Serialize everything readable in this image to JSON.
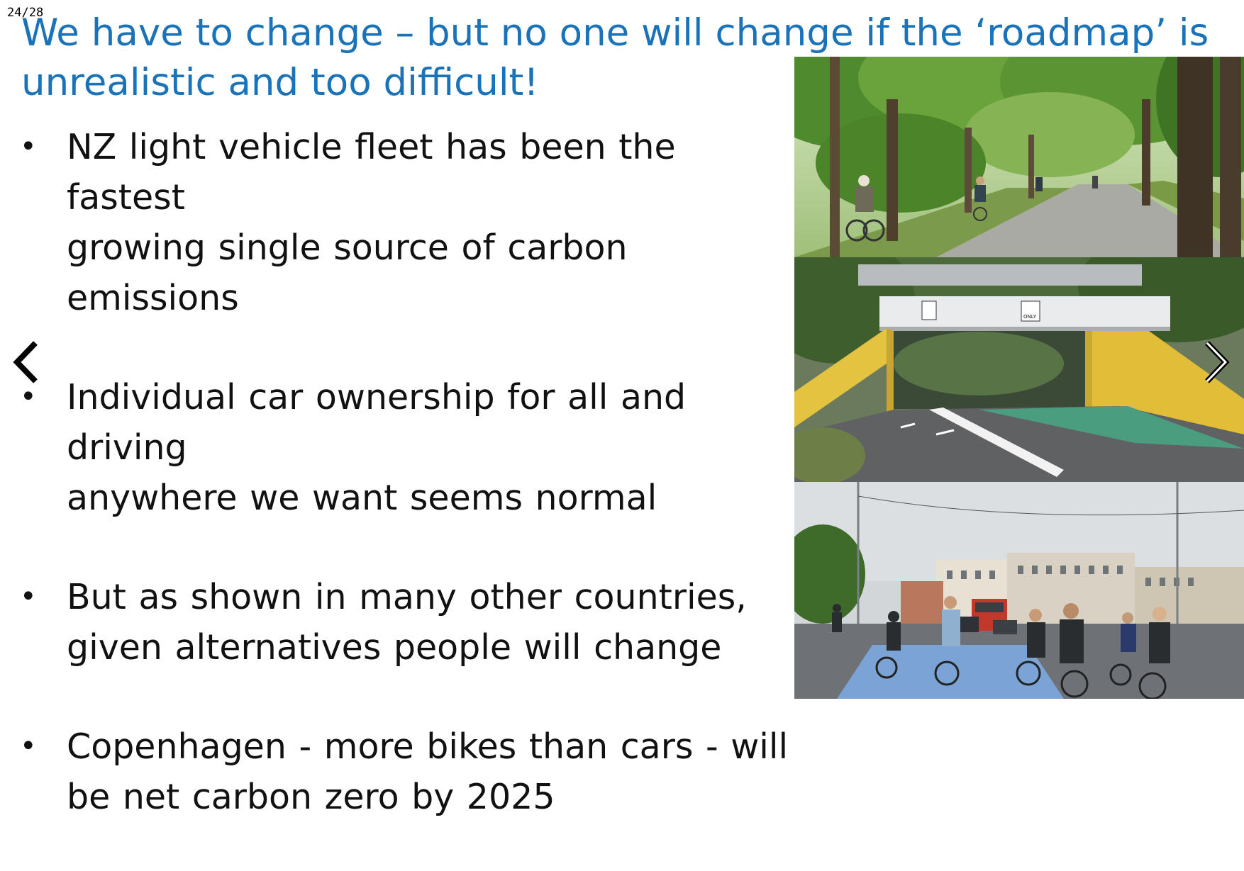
{
  "slide": {
    "counter": "24/28",
    "title": "We have to change – but no one will change if the ‘roadmap’ is unrealistic and too difficult!",
    "bullets": [
      {
        "marker": "•",
        "lines": [
          "NZ light vehicle fleet has been the fastest",
          "growing single source of carbon emissions"
        ]
      },
      {
        "marker": "•",
        "lines": [
          "Individual car ownership for all and driving",
          "anywhere we want seems normal"
        ]
      },
      {
        "marker": "•",
        "lines": [
          "But as shown in many other countries,",
          "given alternatives people will change"
        ]
      },
      {
        "marker": "•",
        "lines": [
          "Copenhagen - more bikes than cars - will",
          "be net carbon zero by 2025"
        ]
      }
    ],
    "photos": [
      {
        "description": "tree-lined-bike-path-photo"
      },
      {
        "description": "cycle-underpass-photo",
        "sign_text": "ONLY"
      },
      {
        "description": "copenhagen-cyclists-street-photo"
      }
    ]
  },
  "navigation": {
    "prev_icon": "chevron-left-icon",
    "next_icon": "chevron-right-icon"
  },
  "colors": {
    "title": "#1a73b8",
    "body_text": "#111111",
    "background": "#ffffff"
  }
}
